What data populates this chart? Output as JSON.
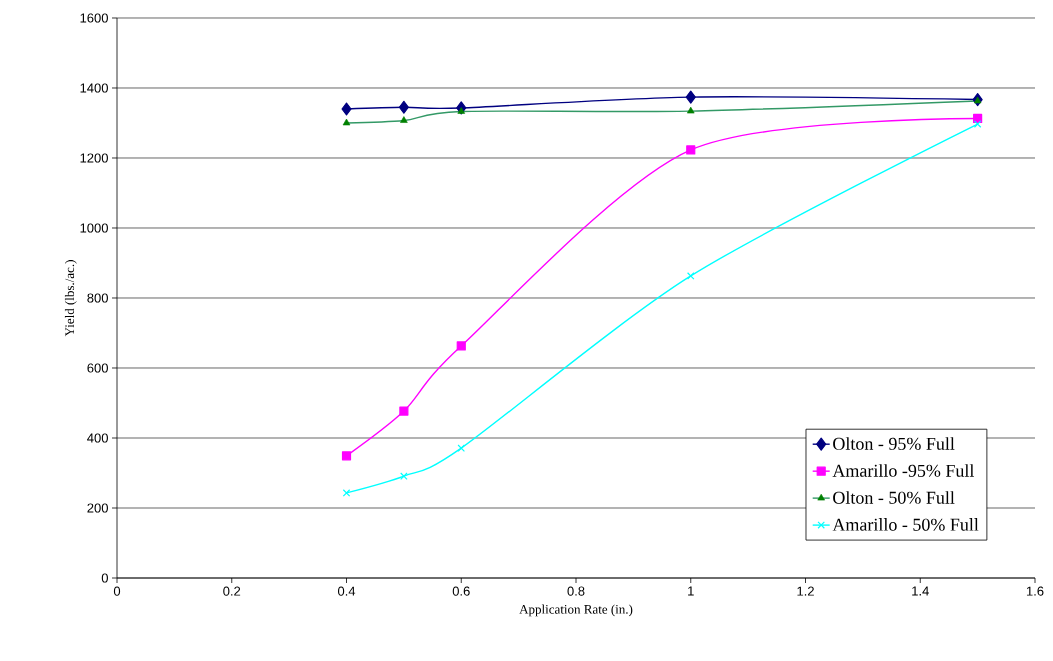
{
  "chart_data": {
    "type": "line",
    "xlabel": "Application Rate (in.)",
    "ylabel": "Yield (lbs./ac.)",
    "xlim": [
      0,
      1.6
    ],
    "ylim": [
      0,
      1600
    ],
    "xticks": [
      0,
      0.2,
      0.4,
      0.6,
      0.8,
      1,
      1.2,
      1.4,
      1.6
    ],
    "yticks": [
      0,
      200,
      400,
      600,
      800,
      1000,
      1200,
      1400,
      1600
    ],
    "grid": "y",
    "legend": "bottom right",
    "series": [
      {
        "name": "Olton - 95% Full",
        "color": "#000080",
        "marker": "diamond",
        "x": [
          0.4,
          0.5,
          0.6,
          1,
          1.5
        ],
        "values": [
          1340,
          1345,
          1343,
          1374,
          1367
        ]
      },
      {
        "name": "Amarillo -95% Full",
        "color": "#ff00ff",
        "marker": "square",
        "x": [
          0.4,
          0.5,
          0.6,
          1,
          1.5
        ],
        "values": [
          349,
          477,
          663,
          1223,
          1313
        ]
      },
      {
        "name": "Olton - 50% Full",
        "color": "#339966",
        "marker": "triangle",
        "x": [
          0.4,
          0.5,
          0.6,
          1,
          1.5
        ],
        "values": [
          1300,
          1307,
          1333,
          1334,
          1363
        ]
      },
      {
        "name": "Amarillo - 50% Full",
        "color": "#00ffff",
        "marker": "cross",
        "x": [
          0.4,
          0.5,
          0.6,
          1,
          1.5
        ],
        "values": [
          243,
          291,
          371,
          863,
          1297
        ]
      }
    ]
  }
}
